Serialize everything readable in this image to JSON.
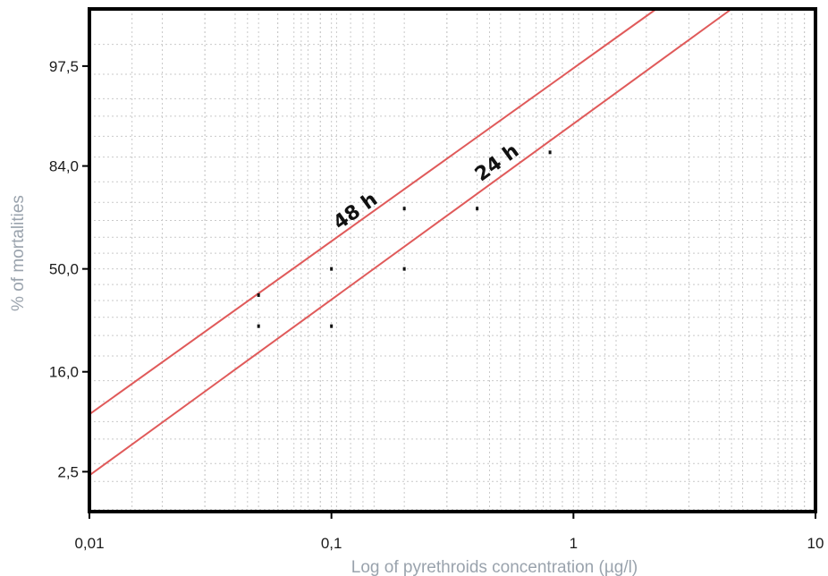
{
  "chart_data": {
    "type": "line",
    "title": "",
    "xlabel": "Log of pyrethroids concentration (µg/l)",
    "ylabel": "% of mortalities",
    "x_scale": "log",
    "xlim": [
      0.01,
      10
    ],
    "x_ticks": [
      {
        "value": 0.01,
        "label": "0,01"
      },
      {
        "value": 0.1,
        "label": "0,1"
      },
      {
        "value": 1,
        "label": "1"
      },
      {
        "value": 10,
        "label": "10"
      }
    ],
    "y_scale": "probit",
    "y_ticks": [
      {
        "value": 2.5,
        "label": "2,5"
      },
      {
        "value": 16.0,
        "label": "16,0"
      },
      {
        "value": 50.0,
        "label": "50,0"
      },
      {
        "value": 84.0,
        "label": "84,0"
      },
      {
        "value": 97.5,
        "label": "97,5"
      }
    ],
    "grid": true,
    "series": [
      {
        "name": "48 h",
        "line": [
          {
            "x": 0.01,
            "y": 8
          },
          {
            "x": 2.2,
            "y": 99.4
          }
        ],
        "points": [
          {
            "x": 0.05,
            "y": 40
          },
          {
            "x": 0.1,
            "y": 50
          },
          {
            "x": 0.2,
            "y": 72
          }
        ]
      },
      {
        "name": "24 h",
        "line": [
          {
            "x": 0.01,
            "y": 2.3
          },
          {
            "x": 4.5,
            "y": 99.4
          }
        ],
        "points": [
          {
            "x": 0.05,
            "y": 29
          },
          {
            "x": 0.1,
            "y": 29
          },
          {
            "x": 0.2,
            "y": 50
          },
          {
            "x": 0.4,
            "y": 72
          },
          {
            "x": 0.8,
            "y": 87
          }
        ]
      }
    ],
    "line_color": "#e05a5a",
    "point_color": "#111111",
    "frame_color": "#000000"
  }
}
